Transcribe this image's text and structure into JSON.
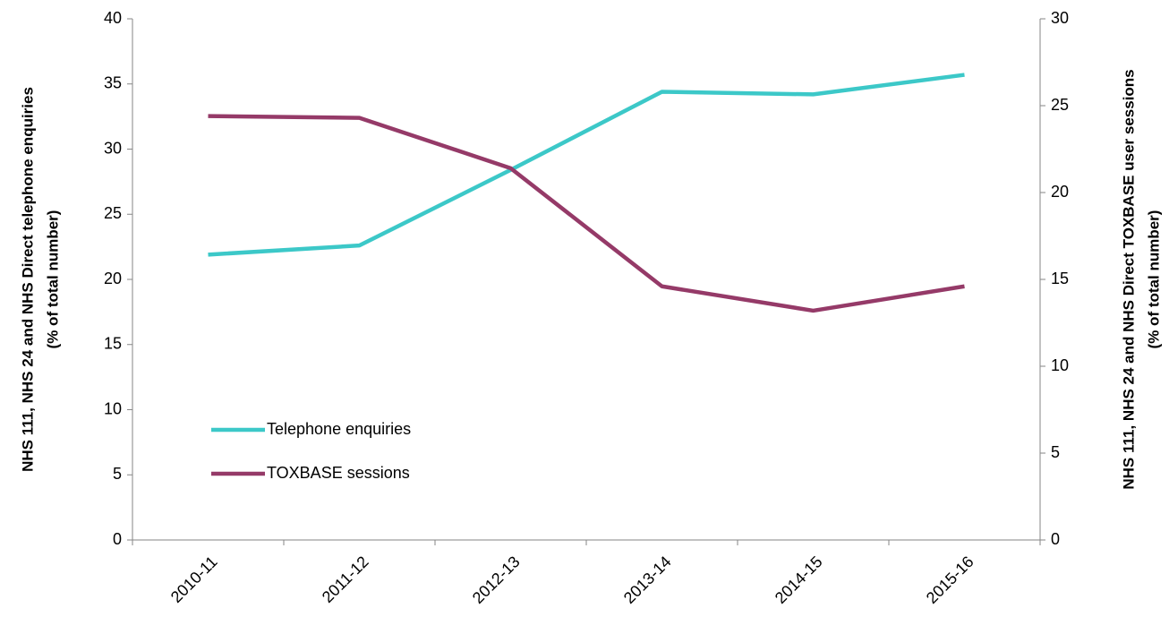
{
  "chart_data": {
    "type": "line",
    "categories": [
      "2010-11",
      "2011-12",
      "2012-13",
      "2013-14",
      "2014-15",
      "2015-16"
    ],
    "series": [
      {
        "name": "Telephone enquiries",
        "color": "#3cc8c8",
        "values": [
          21.9,
          22.6,
          28.4,
          34.4,
          34.2,
          35.7
        ]
      },
      {
        "name": "TOXBASE sessions",
        "color": "#953a68",
        "axis": "y2",
        "values": [
          24.4,
          24.3,
          21.4,
          14.6,
          13.2,
          14.6
        ]
      }
    ],
    "ylabel": [
      "NHS 111, NHS 24 and NHS Direct telephone enquiries",
      "(% of total number)"
    ],
    "y2label": [
      "NHS 111, NHS 24 and NHS Direct TOXBASE user sessions",
      "(% of total number)"
    ],
    "ylim": [
      0,
      40
    ],
    "yticks": [
      0,
      5,
      10,
      15,
      20,
      25,
      30,
      35,
      40
    ],
    "y2lim": [
      0,
      30
    ],
    "y2ticks": [
      0,
      5,
      10,
      15,
      20,
      25,
      30
    ],
    "grid": false,
    "legend": "lower-left"
  }
}
